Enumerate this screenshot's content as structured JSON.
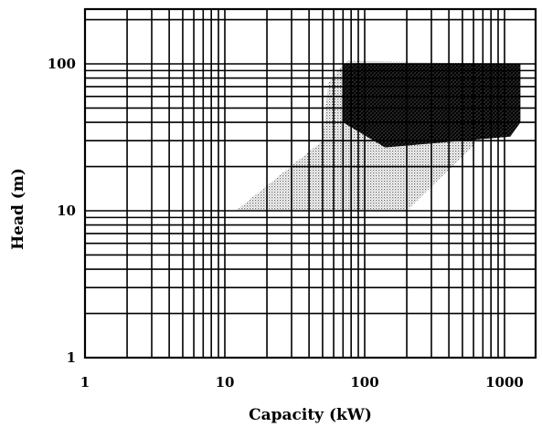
{
  "chart_data": {
    "type": "area",
    "title": "",
    "xlabel": "Capacity (kW)",
    "ylabel": "Head (m)",
    "x_scale": "log",
    "y_scale": "log",
    "xlim": [
      1,
      1300
    ],
    "ylim": [
      1,
      250
    ],
    "grid": true,
    "x_ticks": [
      {
        "value": 1,
        "label": "1"
      },
      {
        "value": 10,
        "label": "10"
      },
      {
        "value": 100,
        "label": "100"
      },
      {
        "value": 1000,
        "label": "1000"
      }
    ],
    "y_ticks": [
      {
        "value": 1,
        "label": "1"
      },
      {
        "value": 10,
        "label": "10"
      },
      {
        "value": 100,
        "label": "100"
      }
    ],
    "series": [
      {
        "fill": "light-stipple",
        "color": "#b8b8b8",
        "polygon": [
          {
            "x": 12,
            "y": 10
          },
          {
            "x": 200,
            "y": 10
          },
          {
            "x": 600,
            "y": 28
          },
          {
            "x": 1300,
            "y": 95
          },
          {
            "x": 1300,
            "y": 100
          },
          {
            "x": 75,
            "y": 105
          },
          {
            "x": 55,
            "y": 75
          },
          {
            "x": 50,
            "y": 30
          }
        ]
      },
      {
        "fill": "dense-crosshatch",
        "color": "#1a1a1a",
        "polygon": [
          {
            "x": 70,
            "y": 40
          },
          {
            "x": 70,
            "y": 100
          },
          {
            "x": 1300,
            "y": 100
          },
          {
            "x": 1300,
            "y": 40
          },
          {
            "x": 1100,
            "y": 32
          },
          {
            "x": 140,
            "y": 27
          }
        ]
      }
    ]
  }
}
